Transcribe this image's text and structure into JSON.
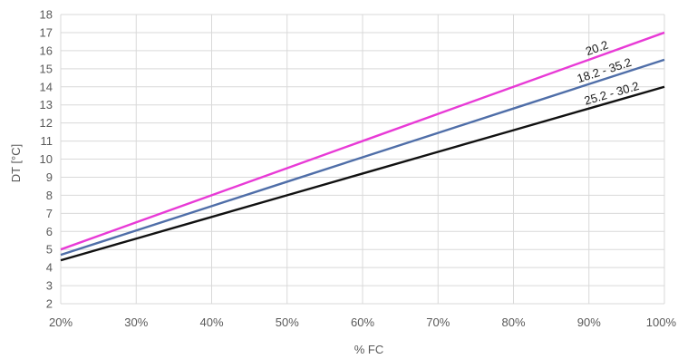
{
  "chart_data": {
    "type": "line",
    "title": "",
    "xlabel": "% FC",
    "ylabel": "DT [°C]",
    "x": [
      20,
      30,
      40,
      50,
      60,
      70,
      80,
      90,
      100
    ],
    "x_tick_labels": [
      "20%",
      "30%",
      "40%",
      "50%",
      "60%",
      "70%",
      "80%",
      "90%",
      "100%"
    ],
    "xlim": [
      20,
      100
    ],
    "ylim": [
      2,
      18
    ],
    "y_ticks": [
      2,
      3,
      4,
      5,
      6,
      7,
      8,
      9,
      10,
      11,
      12,
      13,
      14,
      15,
      16,
      17,
      18
    ],
    "grid": true,
    "legend": "none",
    "series": [
      {
        "name": "20.2",
        "color": "#e83ad6",
        "values": [
          5.0,
          6.5,
          8.0,
          9.5,
          11.0,
          12.5,
          14.0,
          15.5,
          17.0
        ]
      },
      {
        "name": "18.2 - 35.2",
        "color": "#4f6ea8",
        "values": [
          4.7,
          6.05,
          7.4,
          8.75,
          10.1,
          11.45,
          12.8,
          14.15,
          15.5
        ]
      },
      {
        "name": "25.2 - 30.2",
        "color": "#111111",
        "values": [
          4.4,
          5.6,
          6.8,
          8.0,
          9.2,
          10.4,
          11.6,
          12.8,
          14.0
        ]
      }
    ]
  }
}
